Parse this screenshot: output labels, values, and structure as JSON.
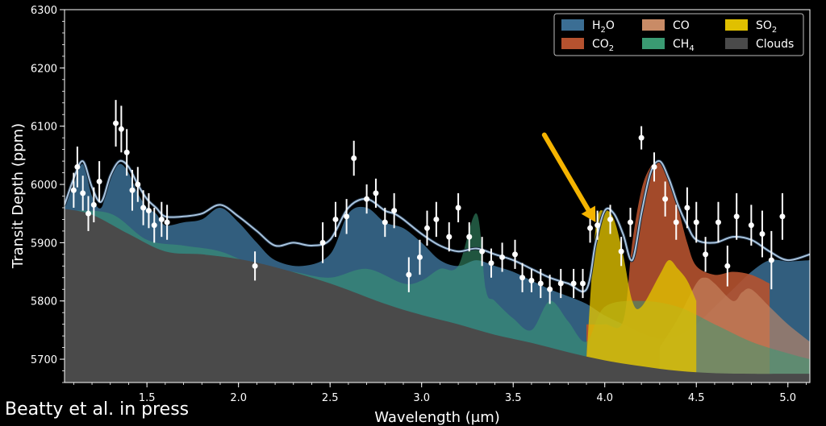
{
  "credit": "Beatty et al. in press",
  "colors": {
    "background": "#000000",
    "h2o": "#3b6e94",
    "co2": "#b5522f",
    "co": "#c98b66",
    "ch4": "#3a9a72",
    "so2": "#e0c000",
    "clouds": "#4a4a4a",
    "model": "#a9c4de",
    "arrow": "#f5b400"
  },
  "chart_data": {
    "type": "area",
    "xlabel": "Wavelength (μm)",
    "ylabel": "Transit Depth (ppm)",
    "xlim": [
      1.05,
      5.12
    ],
    "ylim": [
      5660,
      6300
    ],
    "xticks": [
      "1.5",
      "2.0",
      "2.5",
      "3.0",
      "3.5",
      "4.0",
      "4.5",
      "5.0"
    ],
    "yticks": [
      "5700",
      "5800",
      "5900",
      "6000",
      "6100",
      "6200",
      "6300"
    ],
    "legend_position": "top-right",
    "legend": [
      {
        "base": "H",
        "sub": "2",
        "tail": "O",
        "color": "h2o"
      },
      {
        "base": "CO",
        "sub": "2",
        "tail": "",
        "color": "co2"
      },
      {
        "base": "CO",
        "sub": "",
        "tail": "",
        "color": "co"
      },
      {
        "base": "CH",
        "sub": "4",
        "tail": "",
        "color": "ch4"
      },
      {
        "base": "SO",
        "sub": "2",
        "tail": "",
        "color": "so2"
      },
      {
        "base": "Clouds",
        "sub": "",
        "tail": "",
        "color": "clouds"
      }
    ],
    "clouds": {
      "x": [
        1.05,
        1.2,
        1.4,
        1.6,
        1.8,
        2.0,
        2.2,
        2.5,
        2.8,
        3.0,
        3.2,
        3.4,
        3.6,
        3.8,
        4.0,
        4.2,
        4.4,
        4.6,
        4.8,
        5.0,
        5.12
      ],
      "y": [
        5958,
        5948,
        5915,
        5885,
        5880,
        5872,
        5858,
        5830,
        5795,
        5776,
        5760,
        5742,
        5728,
        5712,
        5698,
        5688,
        5680,
        5676,
        5675,
        5675,
        5675
      ]
    },
    "h2o": {
      "x": [
        1.05,
        1.1,
        1.15,
        1.2,
        1.25,
        1.3,
        1.35,
        1.4,
        1.45,
        1.5,
        1.55,
        1.6,
        1.7,
        1.8,
        1.9,
        2.0,
        2.1,
        2.2,
        2.35,
        2.5,
        2.6,
        2.7,
        2.8,
        2.9,
        3.0,
        3.1,
        3.2,
        3.3,
        3.4,
        3.5,
        3.6,
        3.7,
        3.8,
        3.9,
        4.0,
        4.1,
        4.2,
        4.3,
        4.4,
        4.5,
        4.6,
        4.7,
        4.8,
        4.9,
        5.0,
        5.12
      ],
      "y": [
        5960,
        6000,
        6035,
        5980,
        5960,
        6010,
        6035,
        6020,
        5985,
        5960,
        5950,
        5930,
        5935,
        5940,
        5960,
        5935,
        5900,
        5870,
        5860,
        5880,
        5950,
        5960,
        5935,
        5925,
        5900,
        5870,
        5860,
        5870,
        5860,
        5850,
        5835,
        5820,
        5808,
        5795,
        5775,
        5760,
        5745,
        5735,
        5740,
        5760,
        5790,
        5820,
        5850,
        5870,
        5868,
        5870
      ]
    },
    "co2": {
      "x": [
        3.9,
        4.0,
        4.1,
        4.15,
        4.2,
        4.25,
        4.3,
        4.35,
        4.4,
        4.45,
        4.5,
        4.6,
        4.7,
        4.8,
        4.9
      ],
      "y": [
        5760,
        5760,
        5765,
        5900,
        5990,
        6030,
        6040,
        6010,
        5960,
        5900,
        5860,
        5845,
        5850,
        5845,
        5830
      ]
    },
    "co": {
      "x": [
        4.3,
        4.4,
        4.5,
        4.55,
        4.6,
        4.7,
        4.75,
        4.8,
        4.9,
        5.0,
        5.12
      ],
      "y": [
        5720,
        5770,
        5830,
        5840,
        5830,
        5800,
        5815,
        5820,
        5790,
        5760,
        5730
      ]
    },
    "ch4": {
      "x": [
        1.05,
        1.3,
        1.5,
        1.7,
        1.9,
        2.1,
        2.3,
        2.5,
        2.7,
        2.9,
        3.0,
        3.1,
        3.2,
        3.3,
        3.35,
        3.4,
        3.5,
        3.6,
        3.7,
        3.8,
        3.9,
        4.0,
        4.2,
        4.4,
        4.6,
        4.8,
        5.0,
        5.12
      ],
      "y": [
        5955,
        5950,
        5905,
        5895,
        5885,
        5860,
        5850,
        5840,
        5855,
        5830,
        5835,
        5855,
        5860,
        5950,
        5820,
        5800,
        5770,
        5750,
        5800,
        5765,
        5730,
        5790,
        5800,
        5790,
        5760,
        5730,
        5710,
        5700
      ]
    },
    "so2": {
      "x": [
        3.9,
        3.95,
        4.0,
        4.05,
        4.1,
        4.15,
        4.2,
        4.3,
        4.35,
        4.4,
        4.45,
        4.5
      ],
      "y": [
        5700,
        5925,
        5955,
        5940,
        5880,
        5800,
        5790,
        5845,
        5870,
        5855,
        5835,
        5800
      ]
    },
    "model": {
      "x": [
        1.05,
        1.1,
        1.15,
        1.2,
        1.25,
        1.3,
        1.35,
        1.4,
        1.45,
        1.5,
        1.55,
        1.6,
        1.7,
        1.8,
        1.9,
        2.0,
        2.1,
        2.2,
        2.3,
        2.4,
        2.5,
        2.6,
        2.7,
        2.8,
        2.85,
        2.9,
        3.0,
        3.1,
        3.2,
        3.3,
        3.4,
        3.5,
        3.6,
        3.7,
        3.8,
        3.9,
        3.95,
        4.0,
        4.05,
        4.1,
        4.15,
        4.2,
        4.25,
        4.3,
        4.35,
        4.4,
        4.45,
        4.5,
        4.6,
        4.7,
        4.8,
        4.9,
        5.0,
        5.12
      ],
      "y": [
        5965,
        6010,
        6040,
        5995,
        5970,
        6015,
        6040,
        6030,
        6000,
        5975,
        5960,
        5945,
        5945,
        5950,
        5965,
        5945,
        5920,
        5895,
        5900,
        5895,
        5905,
        5960,
        5975,
        5955,
        5950,
        5940,
        5915,
        5895,
        5885,
        5890,
        5880,
        5870,
        5855,
        5840,
        5830,
        5820,
        5900,
        5955,
        5950,
        5915,
        5870,
        5950,
        6020,
        6040,
        6010,
        5965,
        5930,
        5905,
        5900,
        5910,
        5905,
        5885,
        5870,
        5880
      ]
    },
    "data_points": {
      "x": [
        1.1,
        1.12,
        1.15,
        1.18,
        1.21,
        1.24,
        1.33,
        1.36,
        1.39,
        1.42,
        1.45,
        1.48,
        1.51,
        1.54,
        1.58,
        1.61,
        2.09,
        2.46,
        2.53,
        2.59,
        2.63,
        2.7,
        2.75,
        2.8,
        2.85,
        2.93,
        2.99,
        3.03,
        3.08,
        3.15,
        3.2,
        3.26,
        3.33,
        3.38,
        3.44,
        3.51,
        3.55,
        3.6,
        3.65,
        3.7,
        3.76,
        3.83,
        3.88,
        3.92,
        3.96,
        4.03,
        4.09,
        4.14,
        4.2,
        4.27,
        4.33,
        4.39,
        4.45,
        4.5,
        4.55,
        4.62,
        4.67,
        4.72,
        4.8,
        4.86,
        4.91,
        4.97
      ],
      "y": [
        5990,
        6030,
        5985,
        5950,
        5965,
        6005,
        6105,
        6095,
        6055,
        5990,
        6000,
        5960,
        5955,
        5930,
        5940,
        5935,
        5860,
        5900,
        5940,
        5945,
        6045,
        5975,
        5985,
        5935,
        5955,
        5845,
        5875,
        5925,
        5940,
        5910,
        5960,
        5910,
        5885,
        5865,
        5875,
        5880,
        5840,
        5835,
        5830,
        5820,
        5830,
        5830,
        5830,
        5925,
        5930,
        5940,
        5885,
        5935,
        6080,
        6030,
        5975,
        5935,
        5960,
        5935,
        5880,
        5935,
        5860,
        5945,
        5930,
        5915,
        5870,
        5945
      ],
      "err": [
        30,
        35,
        30,
        30,
        30,
        35,
        40,
        40,
        40,
        35,
        30,
        30,
        30,
        30,
        30,
        30,
        25,
        35,
        30,
        30,
        30,
        25,
        25,
        25,
        30,
        30,
        30,
        30,
        30,
        25,
        25,
        25,
        25,
        25,
        25,
        25,
        25,
        20,
        25,
        25,
        25,
        25,
        25,
        25,
        25,
        25,
        25,
        25,
        20,
        25,
        30,
        30,
        35,
        35,
        30,
        35,
        35,
        40,
        35,
        40,
        50,
        40
      ]
    },
    "annotation": {
      "type": "arrow",
      "from": [
        3.67,
        6085
      ],
      "to": [
        3.95,
        5935
      ]
    }
  }
}
